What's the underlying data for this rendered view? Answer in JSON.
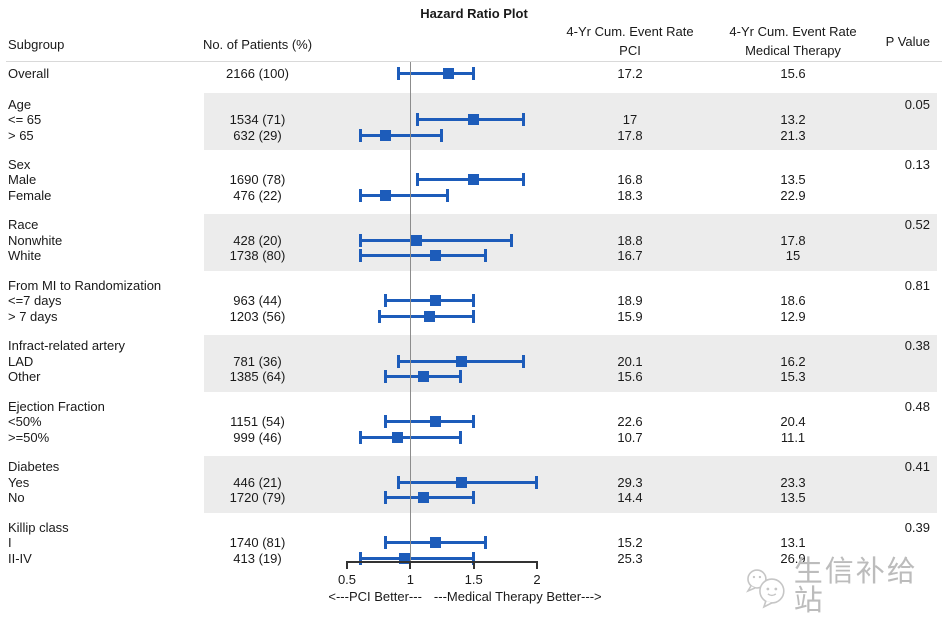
{
  "title": "Hazard Ratio Plot",
  "columns": {
    "subgroup": "Subgroup",
    "patients": "No. of Patients (%)",
    "pci_line1": "4-Yr Cum. Event Rate",
    "pci_line2": "PCI",
    "mt_line1": "4-Yr Cum. Event Rate",
    "mt_line2": "Medical Therapy",
    "p_value": "P Value"
  },
  "axis": {
    "min": 0.5,
    "max": 2,
    "reference": 1,
    "ticks": [
      {
        "value": 0.5,
        "label": "0.5"
      },
      {
        "value": 1,
        "label": "1"
      },
      {
        "value": 1.5,
        "label": "1.5"
      },
      {
        "value": 2,
        "label": "2"
      }
    ],
    "footer_left": "<---PCI Better---",
    "footer_right": "---Medical Therapy Better--->"
  },
  "watermark": {
    "text": "生信补给站",
    "icon": "wechat-bubbles-icon",
    "color": "#bcbcbc"
  },
  "colors": {
    "marker_blue": "#1d5cba",
    "band_gray": "#ececec",
    "ref_line": "#8c8c8c"
  },
  "chart_data": {
    "type": "forest",
    "x_axis": {
      "scale": "linear",
      "min": 0.5,
      "max": 2,
      "ticks": [
        0.5,
        1,
        1.5,
        2
      ],
      "reference_line": 1
    },
    "groups": [
      {
        "label": "",
        "p_value": "",
        "shaded": false,
        "items": [
          {
            "label": "Overall",
            "patients": "2166 (100)",
            "pci_rate": "17.2",
            "mt_rate": "15.6",
            "hr": 1.3,
            "ci_low": 0.9,
            "ci_high": 1.5
          }
        ]
      },
      {
        "label": "Age",
        "p_value": "0.05",
        "shaded": true,
        "items": [
          {
            "label": "<= 65",
            "patients": "1534 (71)",
            "pci_rate": "17",
            "mt_rate": "13.2",
            "hr": 1.5,
            "ci_low": 1.05,
            "ci_high": 1.9
          },
          {
            "label": "> 65",
            "patients": "632 (29)",
            "pci_rate": "17.8",
            "mt_rate": "21.3",
            "hr": 0.8,
            "ci_low": 0.6,
            "ci_high": 1.25
          }
        ]
      },
      {
        "label": "Sex",
        "p_value": "0.13",
        "shaded": false,
        "items": [
          {
            "label": "Male",
            "patients": "1690 (78)",
            "pci_rate": "16.8",
            "mt_rate": "13.5",
            "hr": 1.5,
            "ci_low": 1.05,
            "ci_high": 1.9
          },
          {
            "label": "Female",
            "patients": "476 (22)",
            "pci_rate": "18.3",
            "mt_rate": "22.9",
            "hr": 0.8,
            "ci_low": 0.6,
            "ci_high": 1.3
          }
        ]
      },
      {
        "label": "Race",
        "p_value": "0.52",
        "shaded": true,
        "items": [
          {
            "label": "Nonwhite",
            "patients": "428 (20)",
            "pci_rate": "18.8",
            "mt_rate": "17.8",
            "hr": 1.05,
            "ci_low": 0.6,
            "ci_high": 1.8
          },
          {
            "label": "White",
            "patients": "1738 (80)",
            "pci_rate": "16.7",
            "mt_rate": "15",
            "hr": 1.2,
            "ci_low": 0.6,
            "ci_high": 1.6
          }
        ]
      },
      {
        "label": "From MI to Randomization",
        "p_value": "0.81",
        "shaded": false,
        "items": [
          {
            "label": "<=7 days",
            "patients": "963 (44)",
            "pci_rate": "18.9",
            "mt_rate": "18.6",
            "hr": 1.2,
            "ci_low": 0.8,
            "ci_high": 1.5
          },
          {
            "label": "> 7 days",
            "patients": "1203 (56)",
            "pci_rate": "15.9",
            "mt_rate": "12.9",
            "hr": 1.15,
            "ci_low": 0.75,
            "ci_high": 1.5
          }
        ]
      },
      {
        "label": "Infract-related artery",
        "p_value": "0.38",
        "shaded": true,
        "items": [
          {
            "label": "LAD",
            "patients": "781 (36)",
            "pci_rate": "20.1",
            "mt_rate": "16.2",
            "hr": 1.4,
            "ci_low": 0.9,
            "ci_high": 1.9
          },
          {
            "label": "Other",
            "patients": "1385 (64)",
            "pci_rate": "15.6",
            "mt_rate": "15.3",
            "hr": 1.1,
            "ci_low": 0.8,
            "ci_high": 1.4
          }
        ]
      },
      {
        "label": "Ejection Fraction",
        "p_value": "0.48",
        "shaded": false,
        "items": [
          {
            "label": "<50%",
            "patients": "1151 (54)",
            "pci_rate": "22.6",
            "mt_rate": "20.4",
            "hr": 1.2,
            "ci_low": 0.8,
            "ci_high": 1.5
          },
          {
            "label": ">=50%",
            "patients": "999 (46)",
            "pci_rate": "10.7",
            "mt_rate": "11.1",
            "hr": 0.9,
            "ci_low": 0.6,
            "ci_high": 1.4
          }
        ]
      },
      {
        "label": "Diabetes",
        "p_value": "0.41",
        "shaded": true,
        "items": [
          {
            "label": "Yes",
            "patients": "446 (21)",
            "pci_rate": "29.3",
            "mt_rate": "23.3",
            "hr": 1.4,
            "ci_low": 0.9,
            "ci_high": 2.0
          },
          {
            "label": "No",
            "patients": "1720 (79)",
            "pci_rate": "14.4",
            "mt_rate": "13.5",
            "hr": 1.1,
            "ci_low": 0.8,
            "ci_high": 1.5
          }
        ]
      },
      {
        "label": "Killip class",
        "p_value": "0.39",
        "shaded": false,
        "items": [
          {
            "label": "I",
            "patients": "1740 (81)",
            "pci_rate": "15.2",
            "mt_rate": "13.1",
            "hr": 1.2,
            "ci_low": 0.8,
            "ci_high": 1.6
          },
          {
            "label": "II-IV",
            "patients": "413 (19)",
            "pci_rate": "25.3",
            "mt_rate": "26.9",
            "hr": 0.95,
            "ci_low": 0.6,
            "ci_high": 1.5
          }
        ]
      }
    ]
  }
}
